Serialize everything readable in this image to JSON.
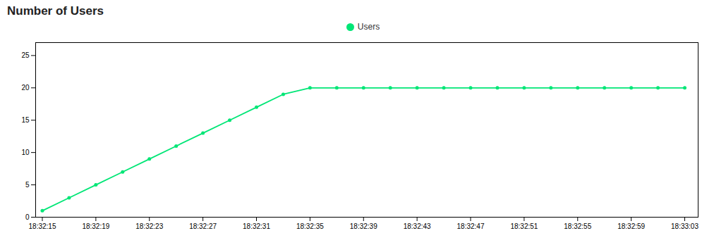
{
  "chart_data": {
    "type": "line",
    "title": "Number of Users",
    "x": [
      0,
      2,
      4,
      6,
      8,
      10,
      12,
      14,
      16,
      18,
      20,
      22,
      24,
      26,
      28,
      30,
      32,
      34,
      36,
      38,
      40,
      42,
      44,
      46,
      48
    ],
    "series": [
      {
        "name": "Users",
        "color": "#00e676",
        "marker": "circle",
        "values": [
          1,
          3,
          5,
          7,
          9,
          11,
          13,
          15,
          17,
          19,
          20,
          20,
          20,
          20,
          20,
          20,
          20,
          20,
          20,
          20,
          20,
          20,
          20,
          20,
          20
        ]
      }
    ],
    "xlim": [
      -0.5,
      49
    ],
    "xticks": [
      {
        "value": 0,
        "label": "18:32:15"
      },
      {
        "value": 4,
        "label": "18:32:19"
      },
      {
        "value": 8,
        "label": "18:32:23"
      },
      {
        "value": 12,
        "label": "18:32:27"
      },
      {
        "value": 16,
        "label": "18:32:31"
      },
      {
        "value": 20,
        "label": "18:32:35"
      },
      {
        "value": 24,
        "label": "18:32:39"
      },
      {
        "value": 28,
        "label": "18:32:43"
      },
      {
        "value": 32,
        "label": "18:32:47"
      },
      {
        "value": 36,
        "label": "18:32:51"
      },
      {
        "value": 40,
        "label": "18:32:55"
      },
      {
        "value": 44,
        "label": "18:32:59"
      },
      {
        "value": 48,
        "label": "18:33:03"
      }
    ],
    "ylim": [
      0,
      27
    ],
    "yticks": [
      0,
      5,
      10,
      15,
      20,
      25
    ],
    "grid": false,
    "legend": "top"
  }
}
